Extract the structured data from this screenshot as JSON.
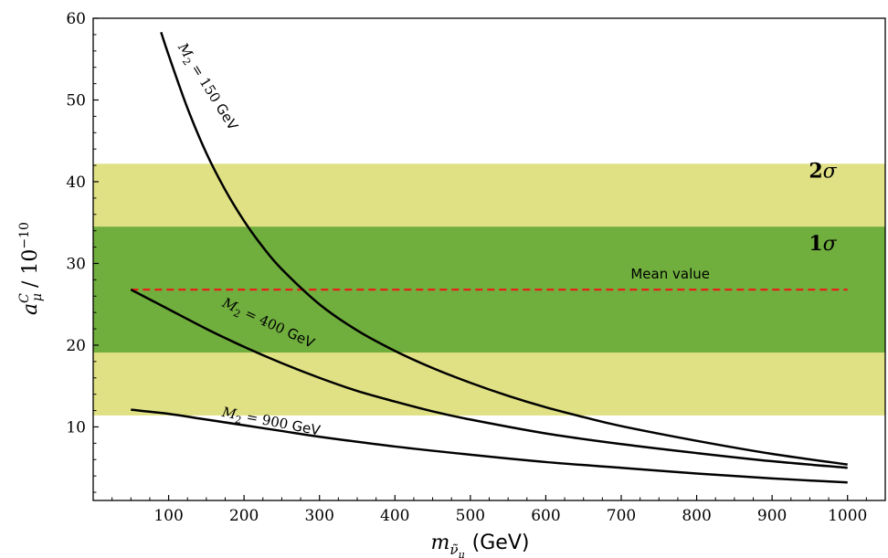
{
  "chart_data": {
    "type": "line",
    "title": "",
    "xlabel": {
      "symbol": "m",
      "sub": "ν̃",
      "subsub": "μ",
      "unit": "(GeV)"
    },
    "ylabel": {
      "symbol": "a",
      "sup": "C",
      "sub": "μ",
      "text": "/ 10",
      "exp": "−10"
    },
    "xlim": [
      0,
      1050
    ],
    "ylim": [
      1,
      60
    ],
    "xticks": [
      100,
      200,
      300,
      400,
      500,
      600,
      700,
      800,
      900,
      1000
    ],
    "yticks": [
      10,
      20,
      30,
      40,
      50,
      60
    ],
    "bands": [
      {
        "name": "2σ",
        "label_num": "2",
        "label_sym": "σ",
        "ymin": 11.4,
        "ymax": 42.2,
        "color": "#e0e085"
      },
      {
        "name": "1σ",
        "label_num": "1",
        "label_sym": "σ",
        "ymin": 19.1,
        "ymax": 34.5,
        "color": "#70ae3e"
      }
    ],
    "mean": {
      "label": "Mean value",
      "y": 26.8,
      "x_range": [
        50,
        1000
      ],
      "color": "#e8201a"
    },
    "series": [
      {
        "name": "M2 = 150 GeV",
        "label_var": "M",
        "label_sub": "2",
        "label_eq": " = 150 ",
        "label_unit": "GeV",
        "x": [
          90,
          100,
          125,
          150,
          175,
          200,
          225,
          250,
          300,
          350,
          400,
          450,
          500,
          550,
          600,
          650,
          700,
          800,
          900,
          1000
        ],
        "y": [
          58.3,
          55.5,
          49.0,
          43.5,
          39.0,
          35.2,
          32.0,
          29.3,
          25.0,
          21.8,
          19.3,
          17.2,
          15.4,
          13.8,
          12.4,
          11.2,
          10.1,
          8.3,
          6.7,
          5.4
        ]
      },
      {
        "name": "M2 = 400 GeV",
        "label_var": "M",
        "label_sub": "2",
        "label_eq": " = 400 ",
        "label_unit": "GeV",
        "x": [
          50,
          75,
          100,
          150,
          200,
          250,
          300,
          350,
          400,
          450,
          500,
          600,
          700,
          800,
          900,
          1000
        ],
        "y": [
          26.8,
          25.6,
          24.4,
          22.0,
          19.8,
          17.8,
          16.0,
          14.4,
          13.1,
          11.9,
          10.9,
          9.2,
          7.9,
          6.8,
          5.8,
          5.0
        ]
      },
      {
        "name": "M2 = 900 GeV",
        "label_var": "M",
        "label_sub": "2",
        "label_eq": " = 900 ",
        "label_unit": "GeV",
        "x": [
          50,
          100,
          150,
          200,
          250,
          300,
          400,
          500,
          600,
          700,
          800,
          900,
          1000
        ],
        "y": [
          12.1,
          11.6,
          10.9,
          10.2,
          9.5,
          8.8,
          7.6,
          6.6,
          5.7,
          5.0,
          4.3,
          3.7,
          3.2
        ]
      }
    ],
    "grid": false,
    "legend": "none"
  }
}
